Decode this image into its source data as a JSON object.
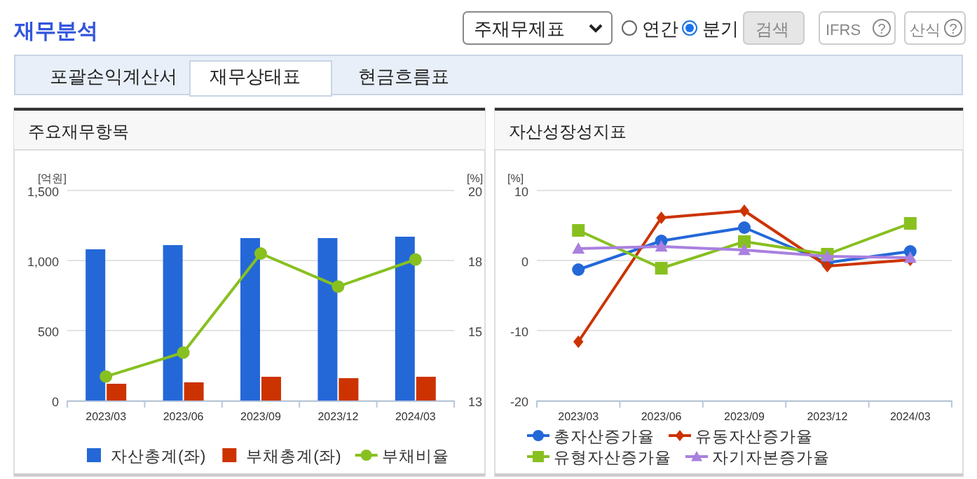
{
  "chart_data": [
    {
      "type": "other",
      "annotations": [
        "재무분석",
        "주재무제표",
        "연간",
        "분기",
        "검색",
        "IFRS",
        "?",
        "산식",
        "?",
        "포괄손익계산서",
        "재무상태표",
        "현금흐름표"
      ]
    },
    {
      "type": "bar",
      "title": "주요재무항목",
      "ylabel": "[억원]",
      "y2label": "[%]",
      "categories": [
        "2023/03",
        "2023/06",
        "2023/09",
        "2023/12",
        "2024/03"
      ],
      "ylim": [
        0,
        1500
      ],
      "yticks": [
        0,
        500,
        {
          "value": 1000,
          "label": "1,000"
        },
        {
          "value": 1500,
          "label": "1,500"
        }
      ],
      "y2lim": [
        13,
        20
      ],
      "y2ticks": [
        13,
        {
          "value": 15.33,
          "label": "15"
        },
        {
          "value": 17.67,
          "label": "18"
        },
        20
      ],
      "grid": "y",
      "legend": "bottom",
      "series": [
        {
          "name": "자산총계(좌)",
          "color": "#2468d8",
          "values": [
            1080,
            1110,
            1160,
            1160,
            1170
          ]
        },
        {
          "name": "부채총계(좌)",
          "color": "#cc3300",
          "values": [
            120,
            130,
            170,
            160,
            170
          ]
        },
        {
          "name": "부채비율",
          "type": "line",
          "axis": "y2",
          "marker": "circle",
          "color": "#88c020",
          "values": [
            13.8,
            14.6,
            17.9,
            16.8,
            17.7
          ]
        }
      ]
    },
    {
      "type": "line",
      "title": "자산성장성지표",
      "ylabel": "[%]",
      "categories": [
        "2023/03",
        "2023/06",
        "2023/09",
        "2023/12",
        "2024/03"
      ],
      "ylim": [
        -20,
        10
      ],
      "yticks": [
        -20,
        -10,
        0,
        10
      ],
      "grid": "y",
      "legend": "bottom",
      "series": [
        {
          "name": "총자산증가율",
          "color": "#2468d8",
          "marker": "circle",
          "values": [
            -1.3,
            2.8,
            4.7,
            -0.3,
            1.3
          ]
        },
        {
          "name": "유동자산증가율",
          "color": "#cc3300",
          "marker": "diamond",
          "values": [
            -11.6,
            6.1,
            7.1,
            -0.8,
            0.1
          ]
        },
        {
          "name": "유형자산증가율",
          "color": "#88c020",
          "marker": "square",
          "values": [
            4.3,
            -1.1,
            2.7,
            0.9,
            5.3
          ]
        },
        {
          "name": "자기자본증가율",
          "color": "#a980e0",
          "marker": "triangle",
          "values": [
            1.7,
            2.0,
            1.5,
            0.6,
            0.4
          ]
        }
      ]
    }
  ]
}
